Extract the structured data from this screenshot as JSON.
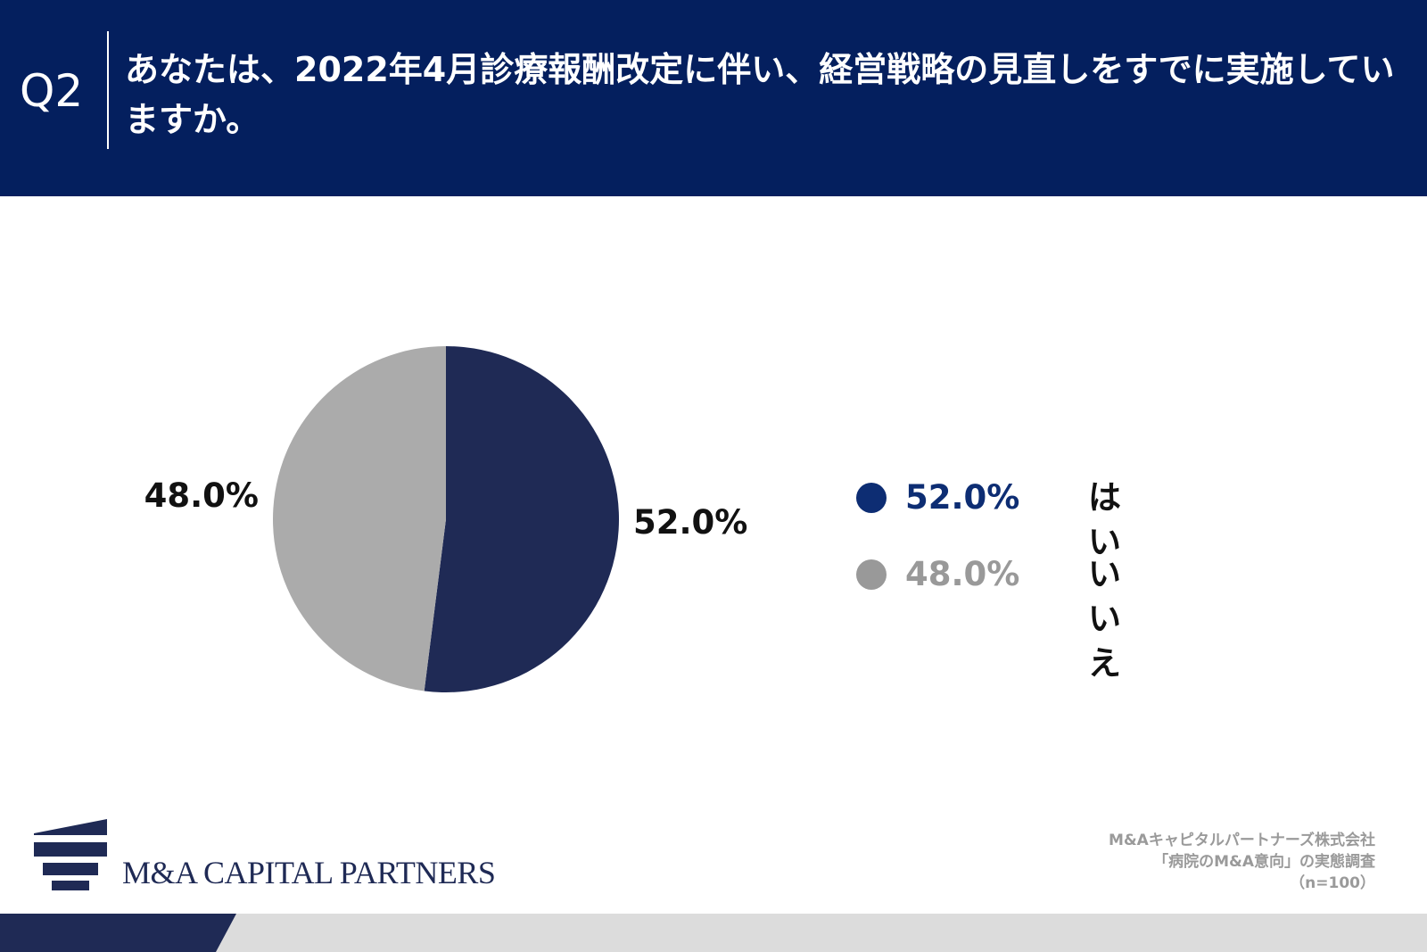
{
  "header": {
    "question_number": "Q2",
    "question_text": "あなたは、2022年4月診療報酬改定に伴い、経営戦略の見直しをすでに実施していますか。"
  },
  "chart_data": {
    "type": "pie",
    "title": "",
    "slices": [
      {
        "label": "はい",
        "value": 52.0,
        "display": "52.0%",
        "color": "#1f2a55",
        "legend_color": "#0d2d73"
      },
      {
        "label": "いいえ",
        "value": 48.0,
        "display": "48.0%",
        "color": "#ababab",
        "legend_color": "#999999"
      }
    ],
    "legend_position": "right"
  },
  "legend": {
    "items": [
      {
        "value": "52.0%",
        "label": "はい"
      },
      {
        "value": "48.0%",
        "label": "いいえ"
      }
    ]
  },
  "branding": {
    "logo_text": "M&A CAPITAL PARTNERS",
    "brand_color": "#1f2a55"
  },
  "source": {
    "line1": "M&Aキャピタルパートナーズ株式会社",
    "line2": "「病院のM&A意向」の実態調査",
    "line3": "（n=100）"
  },
  "colors": {
    "header_bg": "#041f5e",
    "footer_bg": "#dcdcdc",
    "footer_accent": "#1f2a55"
  }
}
